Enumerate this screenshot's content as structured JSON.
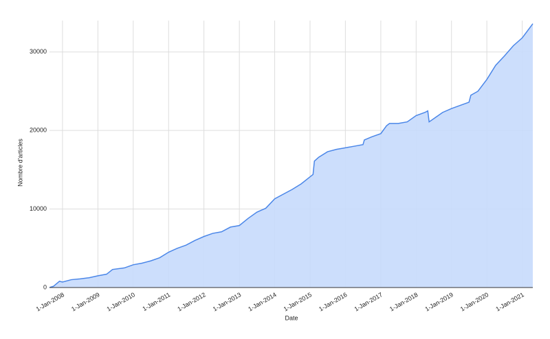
{
  "chart_data": {
    "type": "area",
    "x_label": "Date",
    "y_label": "Nombre d'articles",
    "x": [
      "2007-08-20",
      "2007-10-01",
      "2007-12-01",
      "2008-01-01",
      "2008-04-01",
      "2008-07-01",
      "2008-10-01",
      "2009-01-01",
      "2009-04-01",
      "2009-06-01",
      "2009-10-01",
      "2010-01-01",
      "2010-04-01",
      "2010-07-01",
      "2010-10-01",
      "2011-01-01",
      "2011-04-01",
      "2011-07-01",
      "2011-10-01",
      "2012-01-01",
      "2012-04-01",
      "2012-07-01",
      "2012-10-01",
      "2013-01-01",
      "2013-04-01",
      "2013-07-01",
      "2013-10-01",
      "2014-01-01",
      "2014-04-01",
      "2014-07-01",
      "2014-10-01",
      "2015-01-01",
      "2015-02-01",
      "2015-02-15",
      "2015-04-01",
      "2015-07-01",
      "2015-10-01",
      "2016-01-01",
      "2016-04-01",
      "2016-07-01",
      "2016-07-15",
      "2016-10-01",
      "2017-01-01",
      "2017-03-01",
      "2017-04-01",
      "2017-07-01",
      "2017-10-01",
      "2018-01-01",
      "2018-04-01",
      "2018-05-01",
      "2018-05-15",
      "2018-07-01",
      "2018-10-01",
      "2019-01-01",
      "2019-04-01",
      "2019-07-01",
      "2019-07-20",
      "2019-10-01",
      "2020-01-01",
      "2020-04-01",
      "2020-07-01",
      "2020-10-01",
      "2021-01-01",
      "2021-04-20"
    ],
    "series": [
      {
        "name": "Nombre d'articles",
        "color": "#4a86e8",
        "fill": "#c6dafc",
        "values": [
          0,
          170,
          800,
          700,
          1000,
          1100,
          1250,
          1500,
          1700,
          2300,
          2500,
          2900,
          3100,
          3400,
          3800,
          4500,
          5000,
          5400,
          6000,
          6500,
          6900,
          7100,
          7700,
          7900,
          8800,
          9600,
          10100,
          11300,
          11900,
          12500,
          13200,
          14100,
          14400,
          16100,
          16600,
          17300,
          17600,
          17800,
          18000,
          18200,
          18800,
          19200,
          19600,
          20600,
          20900,
          20900,
          21100,
          21900,
          22300,
          22500,
          21100,
          21500,
          22300,
          22800,
          23200,
          23600,
          24500,
          25000,
          26500,
          28300,
          29500,
          30800,
          31800,
          33600
        ]
      }
    ],
    "xlim": [
      "2007-08-20",
      "2021-04-20"
    ],
    "xticks": [
      {
        "value": "2008-01-01",
        "label": "1-Jan-2008"
      },
      {
        "value": "2009-01-01",
        "label": "1-Jan-2009"
      },
      {
        "value": "2010-01-01",
        "label": "1-Jan-2010"
      },
      {
        "value": "2011-01-01",
        "label": "1-Jan-2011"
      },
      {
        "value": "2012-01-01",
        "label": "1-Jan-2012"
      },
      {
        "value": "2013-01-01",
        "label": "1-Jan-2013"
      },
      {
        "value": "2014-01-01",
        "label": "1-Jan-2014"
      },
      {
        "value": "2015-01-01",
        "label": "1-Jan-2015"
      },
      {
        "value": "2016-01-01",
        "label": "1-Jan-2016"
      },
      {
        "value": "2017-01-01",
        "label": "1-Jan-2017"
      },
      {
        "value": "2018-01-01",
        "label": "1-Jan-2018"
      },
      {
        "value": "2019-01-01",
        "label": "1-Jan-2019"
      },
      {
        "value": "2020-01-01",
        "label": "1-Jan-2020"
      },
      {
        "value": "2021-01-01",
        "label": "1-Jan-2021"
      }
    ],
    "ylim": [
      0,
      34000
    ],
    "yticks": [
      0,
      10000,
      20000,
      30000
    ],
    "grid": true
  }
}
